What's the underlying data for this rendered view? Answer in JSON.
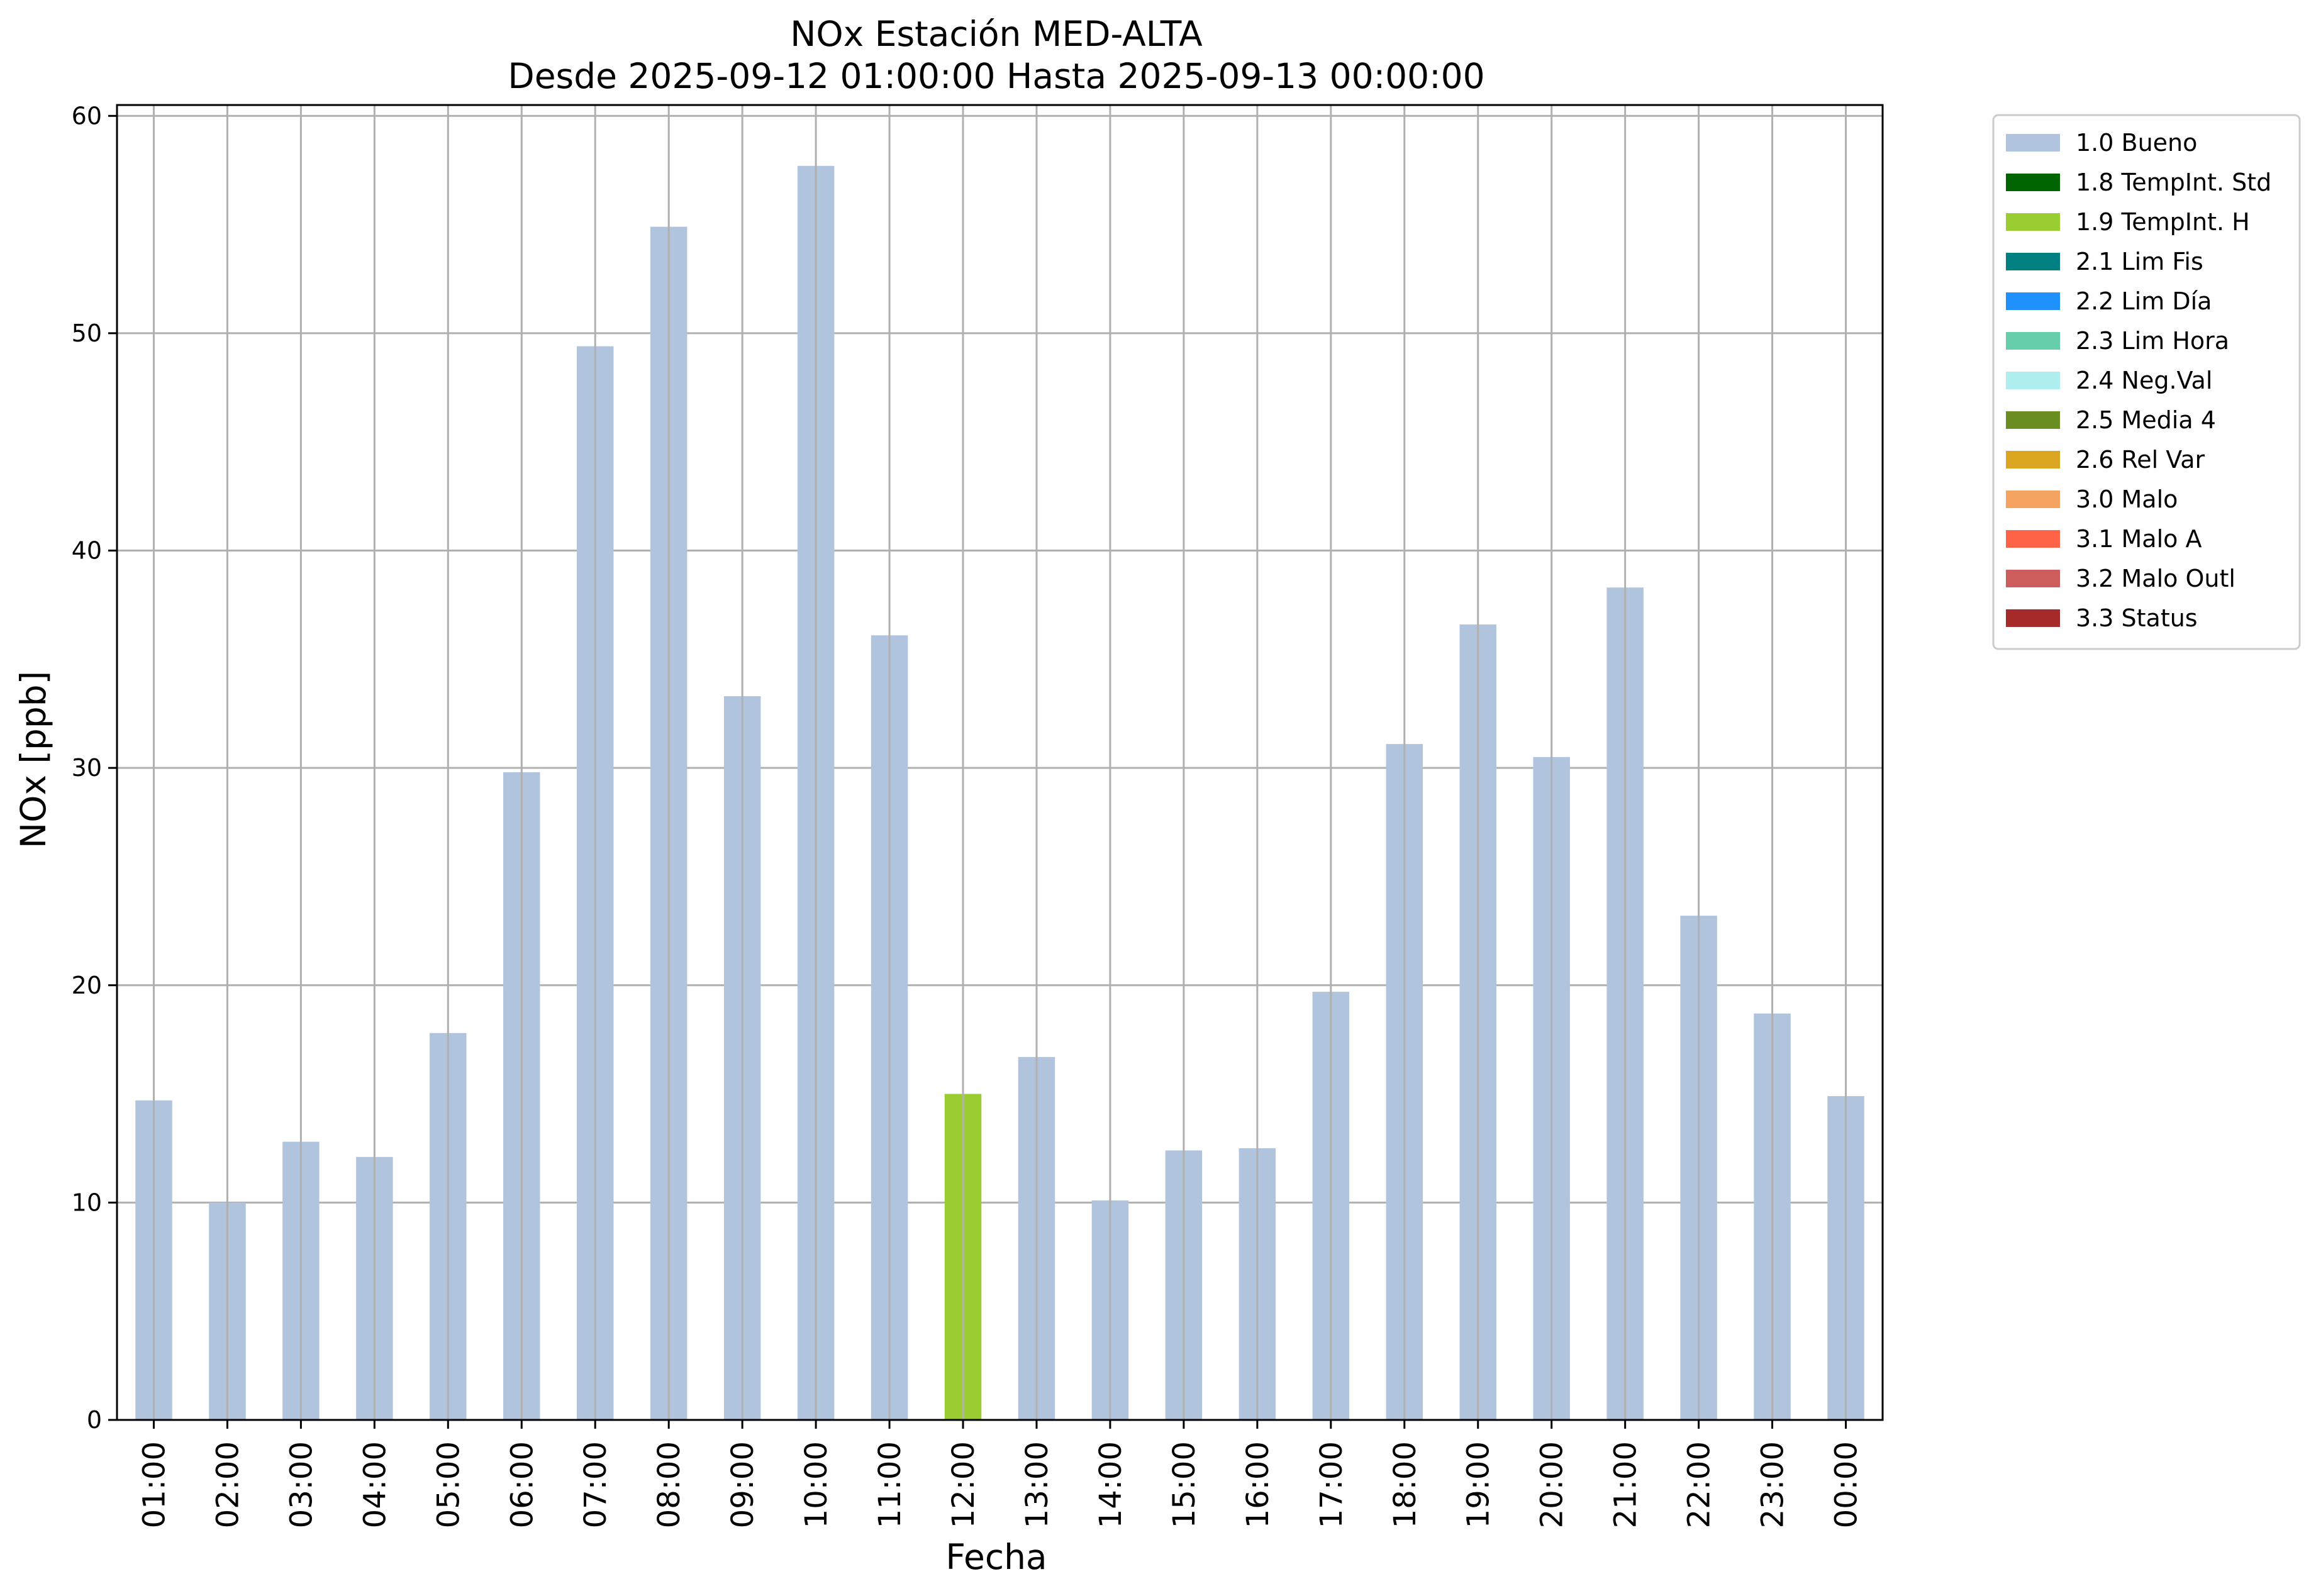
{
  "chart_data": {
    "type": "bar",
    "title": "NOx Estación MED-ALTA",
    "subtitle": "Desde 2025-09-12 01:00:00 Hasta 2025-09-13 00:00:00",
    "xlabel": "Fecha",
    "ylabel": "NOx [ppb]",
    "ylim": [
      0,
      60.5
    ],
    "yticks": [
      0,
      10,
      20,
      30,
      40,
      50,
      60
    ],
    "grid": true,
    "legend_position": "outside-right",
    "categories": [
      "01:00",
      "02:00",
      "03:00",
      "04:00",
      "05:00",
      "06:00",
      "07:00",
      "08:00",
      "09:00",
      "10:00",
      "11:00",
      "12:00",
      "13:00",
      "14:00",
      "15:00",
      "16:00",
      "17:00",
      "18:00",
      "19:00",
      "20:00",
      "21:00",
      "22:00",
      "23:00",
      "00:00"
    ],
    "values": [
      14.7,
      10.0,
      12.8,
      12.1,
      17.8,
      29.8,
      49.4,
      54.9,
      33.3,
      57.7,
      36.1,
      15.0,
      16.7,
      10.1,
      12.4,
      12.5,
      19.7,
      31.1,
      36.6,
      30.5,
      38.3,
      23.2,
      18.7,
      14.9
    ],
    "flags": [
      "1.0 Bueno",
      "1.0 Bueno",
      "1.0 Bueno",
      "1.0 Bueno",
      "1.0 Bueno",
      "1.0 Bueno",
      "1.0 Bueno",
      "1.0 Bueno",
      "1.0 Bueno",
      "1.0 Bueno",
      "1.0 Bueno",
      "1.9 TempInt. H",
      "1.0 Bueno",
      "1.0 Bueno",
      "1.0 Bueno",
      "1.0 Bueno",
      "1.0 Bueno",
      "1.0 Bueno",
      "1.0 Bueno",
      "1.0 Bueno",
      "1.0 Bueno",
      "1.0 Bueno",
      "1.0 Bueno",
      "1.0 Bueno"
    ],
    "legend": [
      {
        "label": "1.0 Bueno",
        "color": "#b0c4de"
      },
      {
        "label": "1.8 TempInt. Std",
        "color": "#006400"
      },
      {
        "label": "1.9 TempInt. H",
        "color": "#9acd32"
      },
      {
        "label": "2.1 Lim Fis",
        "color": "#008080"
      },
      {
        "label": "2.2 Lim Día",
        "color": "#1e90ff"
      },
      {
        "label": "2.3 Lim Hora",
        "color": "#66cdaa"
      },
      {
        "label": "2.4 Neg.Val",
        "color": "#afeeee"
      },
      {
        "label": "2.5 Media 4",
        "color": "#6b8e23"
      },
      {
        "label": "2.6 Rel Var",
        "color": "#daa520"
      },
      {
        "label": "3.0 Malo",
        "color": "#f4a460"
      },
      {
        "label": "3.1 Malo A",
        "color": "#ff6347"
      },
      {
        "label": "3.2 Malo Outl",
        "color": "#cd5c5c"
      },
      {
        "label": "3.3 Status",
        "color": "#a52a2a"
      }
    ]
  }
}
